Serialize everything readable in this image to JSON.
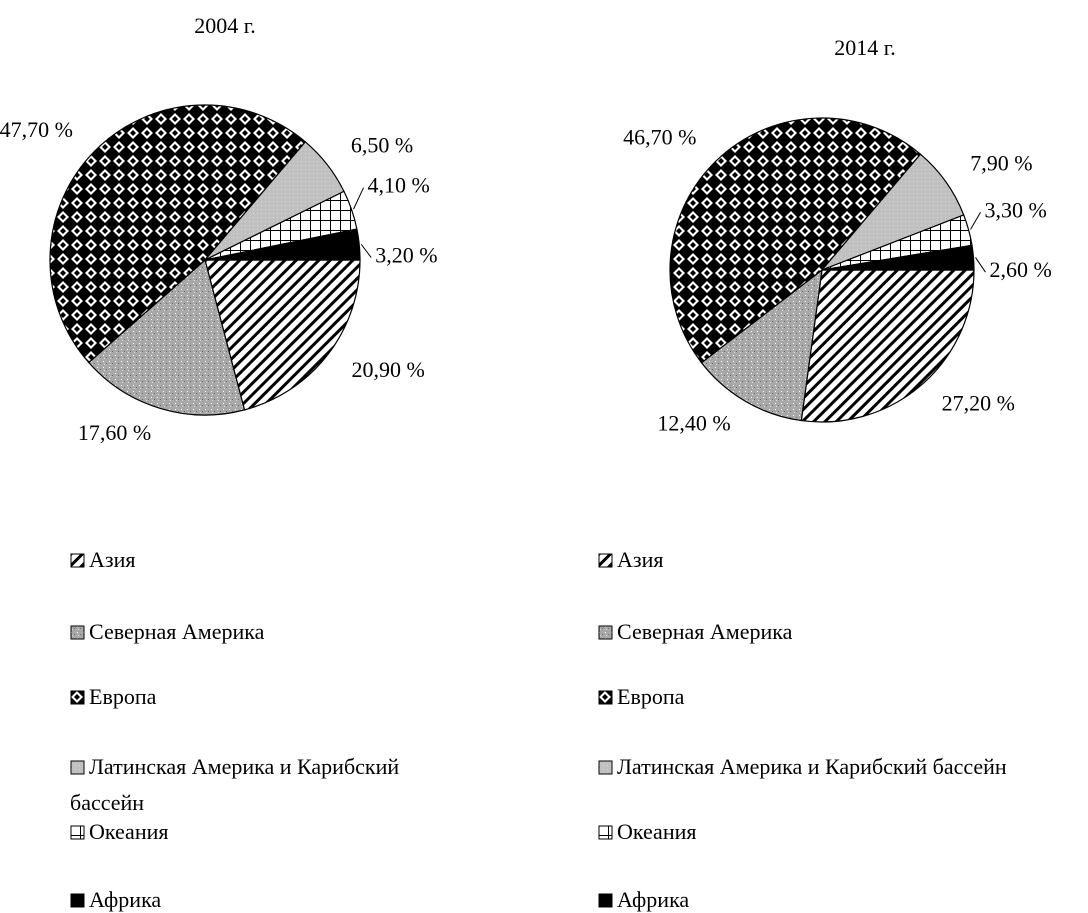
{
  "chart_data": [
    {
      "type": "pie",
      "title": "2004 г.",
      "categories": [
        "Азия",
        "Северная Америка",
        "Европа",
        "Латинская Америка и Карибский бассейн",
        "Океания",
        "Африка"
      ],
      "values": [
        20.9,
        17.6,
        47.7,
        6.5,
        4.1,
        3.2
      ],
      "value_labels": [
        "20,90 %",
        "17,60 %",
        "47,70 %",
        "6,50 %",
        "4,10 %",
        "3,20 %"
      ]
    },
    {
      "type": "pie",
      "title": "2014 г.",
      "categories": [
        "Азия",
        "Северная Америка",
        "Европа",
        "Латинская Америка и Карибский бассейн",
        "Океания",
        "Африка"
      ],
      "values": [
        27.2,
        12.4,
        46.7,
        7.9,
        3.3,
        2.6
      ],
      "value_labels": [
        "27,20 %",
        "12,40 %",
        "46,70 %",
        "7,90 %",
        "3,30 %",
        "2,60 %"
      ]
    }
  ]
}
